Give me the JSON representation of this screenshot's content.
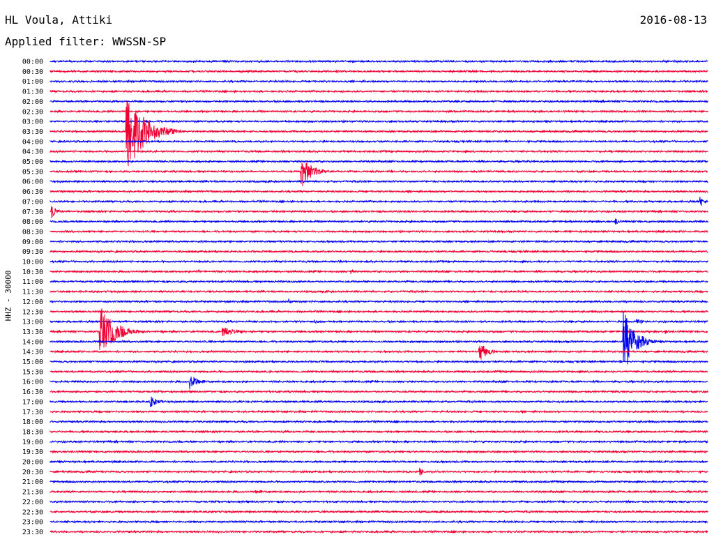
{
  "header": {
    "station": "HL Voula, Attiki",
    "date": "2016-08-13",
    "filter": "Applied filter: WWSSN-SP"
  },
  "axis": {
    "ylabel": "HHZ - 30000"
  },
  "colors": {
    "blue": "#0000ee",
    "red": "#ee0033"
  },
  "chart_data": {
    "type": "line",
    "title": "HL Voula, Attiki",
    "subtitle": "Applied filter: WWSSN-SP",
    "ylabel": "HHZ - 30000",
    "rows": [
      "00:00",
      "00:30",
      "01:00",
      "01:30",
      "02:00",
      "02:30",
      "03:00",
      "03:30",
      "04:00",
      "04:30",
      "05:00",
      "05:30",
      "06:00",
      "06:30",
      "07:00",
      "07:30",
      "08:00",
      "08:30",
      "09:00",
      "09:30",
      "10:00",
      "10:30",
      "11:00",
      "11:30",
      "12:00",
      "12:30",
      "13:00",
      "13:30",
      "14:00",
      "14:30",
      "15:00",
      "15:30",
      "16:00",
      "16:30",
      "17:00",
      "17:30",
      "18:00",
      "18:30",
      "19:00",
      "19:30",
      "20:00",
      "20:30",
      "21:00",
      "21:30",
      "22:00",
      "22:30",
      "23:00",
      "23:30"
    ],
    "line_minutes": 30,
    "series_colors": [
      "blue",
      "red"
    ],
    "events": [
      {
        "row": "03:30",
        "minute": 3.5,
        "amplitude": 60,
        "duration_min": 2.5
      },
      {
        "row": "05:30",
        "minute": 11.5,
        "amplitude": 22,
        "duration_min": 1.5
      },
      {
        "row": "07:30",
        "minute": 0.1,
        "amplitude": 10,
        "duration_min": 0.6
      },
      {
        "row": "07:00",
        "minute": 29.7,
        "amplitude": 8,
        "duration_min": 0.5
      },
      {
        "row": "08:00",
        "minute": 25.8,
        "amplitude": 6,
        "duration_min": 0.4
      },
      {
        "row": "13:30",
        "minute": 2.3,
        "amplitude": 38,
        "duration_min": 2.0
      },
      {
        "row": "13:30",
        "minute": 7.9,
        "amplitude": 7,
        "duration_min": 2.0
      },
      {
        "row": "14:00",
        "minute": 26.2,
        "amplitude": 45,
        "duration_min": 1.5
      },
      {
        "row": "14:30",
        "minute": 19.6,
        "amplitude": 16,
        "duration_min": 1.0
      },
      {
        "row": "16:00",
        "minute": 6.4,
        "amplitude": 12,
        "duration_min": 1.0
      },
      {
        "row": "17:00",
        "minute": 4.6,
        "amplitude": 8,
        "duration_min": 1.0
      },
      {
        "row": "20:30",
        "minute": 16.9,
        "amplitude": 6,
        "duration_min": 0.4
      },
      {
        "row": "13:00",
        "minute": 12.1,
        "amplitude": 3,
        "duration_min": 1.0
      },
      {
        "row": "13:00",
        "minute": 26.8,
        "amplitude": 4,
        "duration_min": 0.8
      },
      {
        "row": "10:30",
        "minute": 6.7,
        "amplitude": 4,
        "duration_min": 0.6
      },
      {
        "row": "10:30",
        "minute": 13.7,
        "amplitude": 4,
        "duration_min": 0.5
      },
      {
        "row": "12:00",
        "minute": 10.9,
        "amplitude": 5,
        "duration_min": 0.2
      },
      {
        "row": "21:30",
        "minute": 9.4,
        "amplitude": 3,
        "duration_min": 1.2
      },
      {
        "row": "13:30",
        "minute": 28.1,
        "amplitude": 3,
        "duration_min": 0.6
      }
    ]
  }
}
